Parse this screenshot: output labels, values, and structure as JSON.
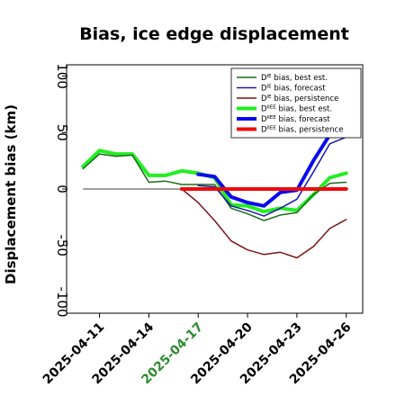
{
  "chart_data": {
    "type": "line",
    "title": "Bias, ice edge displacement",
    "xlabel": "",
    "ylabel": "Displacement bias (km)",
    "ylim": [
      -110,
      110
    ],
    "yticks": [
      -100,
      -50,
      0,
      50,
      100
    ],
    "xlim": [
      "2025-04-09",
      "2025-04-27"
    ],
    "xticks": [
      "2025-04-11",
      "2025-04-14",
      "2025-04-17",
      "2025-04-20",
      "2025-04-23",
      "2025-04-26"
    ],
    "xtick_colors": [
      "#000000",
      "#000000",
      "#2e8b2e",
      "#000000",
      "#000000",
      "#000000"
    ],
    "zero_line": {
      "x_start": "2025-04-10",
      "x_end": "2025-04-26",
      "color": "#666666"
    },
    "grid": false,
    "legend": "top-right",
    "series": [
      {
        "name": "Dᴱ bias, best est.",
        "sup": "IE",
        "label_rest": " bias, best est.",
        "color": "#1a6b1a",
        "width": 1.5,
        "x": [
          "2025-04-10",
          "2025-04-11",
          "2025-04-12",
          "2025-04-13",
          "2025-04-14",
          "2025-04-15",
          "2025-04-16",
          "2025-04-17",
          "2025-04-18",
          "2025-04-19",
          "2025-04-20",
          "2025-04-21",
          "2025-04-22",
          "2025-04-23",
          "2025-04-24",
          "2025-04-25",
          "2025-04-26"
        ],
        "y": [
          18,
          31,
          29,
          30,
          6,
          7,
          4,
          4,
          4,
          -17,
          -22,
          -28,
          -23,
          -21,
          -5,
          5,
          6
        ]
      },
      {
        "name": "Dᴱ bias, forecast",
        "sup": "IE",
        "label_rest": " bias, forecast",
        "color": "#1a1aa0",
        "width": 1.5,
        "x": [
          "2025-04-17",
          "2025-04-18",
          "2025-04-19",
          "2025-04-20",
          "2025-04-21",
          "2025-04-22",
          "2025-04-23",
          "2025-04-24",
          "2025-04-25",
          "2025-04-26"
        ],
        "y": [
          3,
          2,
          -15,
          -19,
          -24,
          -17,
          -9,
          15,
          40,
          46
        ]
      },
      {
        "name": "Dᴱ bias, persistence",
        "sup": "IE",
        "label_rest": " bias, persistence",
        "color": "#7a1515",
        "width": 1.5,
        "x": [
          "2025-04-16",
          "2025-04-17",
          "2025-04-18",
          "2025-04-19",
          "2025-04-20",
          "2025-04-21",
          "2025-04-22",
          "2025-04-23",
          "2025-04-24",
          "2025-04-25",
          "2025-04-26"
        ],
        "y": [
          0,
          -12,
          -28,
          -46,
          -54,
          -58,
          -56,
          -61,
          -51,
          -35,
          -27
        ]
      },
      {
        "name": "Dᴵᴱᴱ bias, best est.",
        "sup": "IIEE",
        "label_rest": " bias, best est.",
        "color": "#22ee22",
        "width": 4,
        "x": [
          "2025-04-10",
          "2025-04-11",
          "2025-04-12",
          "2025-04-13",
          "2025-04-14",
          "2025-04-15",
          "2025-04-16",
          "2025-04-17",
          "2025-04-18",
          "2025-04-19",
          "2025-04-20",
          "2025-04-21",
          "2025-04-22",
          "2025-04-23",
          "2025-04-24",
          "2025-04-25",
          "2025-04-26"
        ],
        "y": [
          20,
          34,
          31,
          31,
          12,
          12,
          16,
          14,
          10,
          -14,
          -15,
          -20,
          -17,
          -19,
          -5,
          10,
          14
        ]
      },
      {
        "name": "Dᴵᴱᴱ bias, forecast",
        "sup": "IIEE",
        "label_rest": " bias, forecast",
        "color": "#0a0aee",
        "width": 4,
        "x": [
          "2025-04-17",
          "2025-04-18",
          "2025-04-19",
          "2025-04-20",
          "2025-04-21",
          "2025-04-22",
          "2025-04-23",
          "2025-04-24",
          "2025-04-25"
        ],
        "y": [
          13,
          11,
          -7,
          -12,
          -15,
          -3,
          -1,
          25,
          48
        ]
      },
      {
        "name": "Dᴵᴱᴱ bias, persistence",
        "sup": "IIEE",
        "label_rest": " bias, persistence",
        "color": "#ee0a0a",
        "width": 4,
        "x": [
          "2025-04-16",
          "2025-04-26"
        ],
        "y": [
          0,
          0
        ]
      }
    ]
  }
}
